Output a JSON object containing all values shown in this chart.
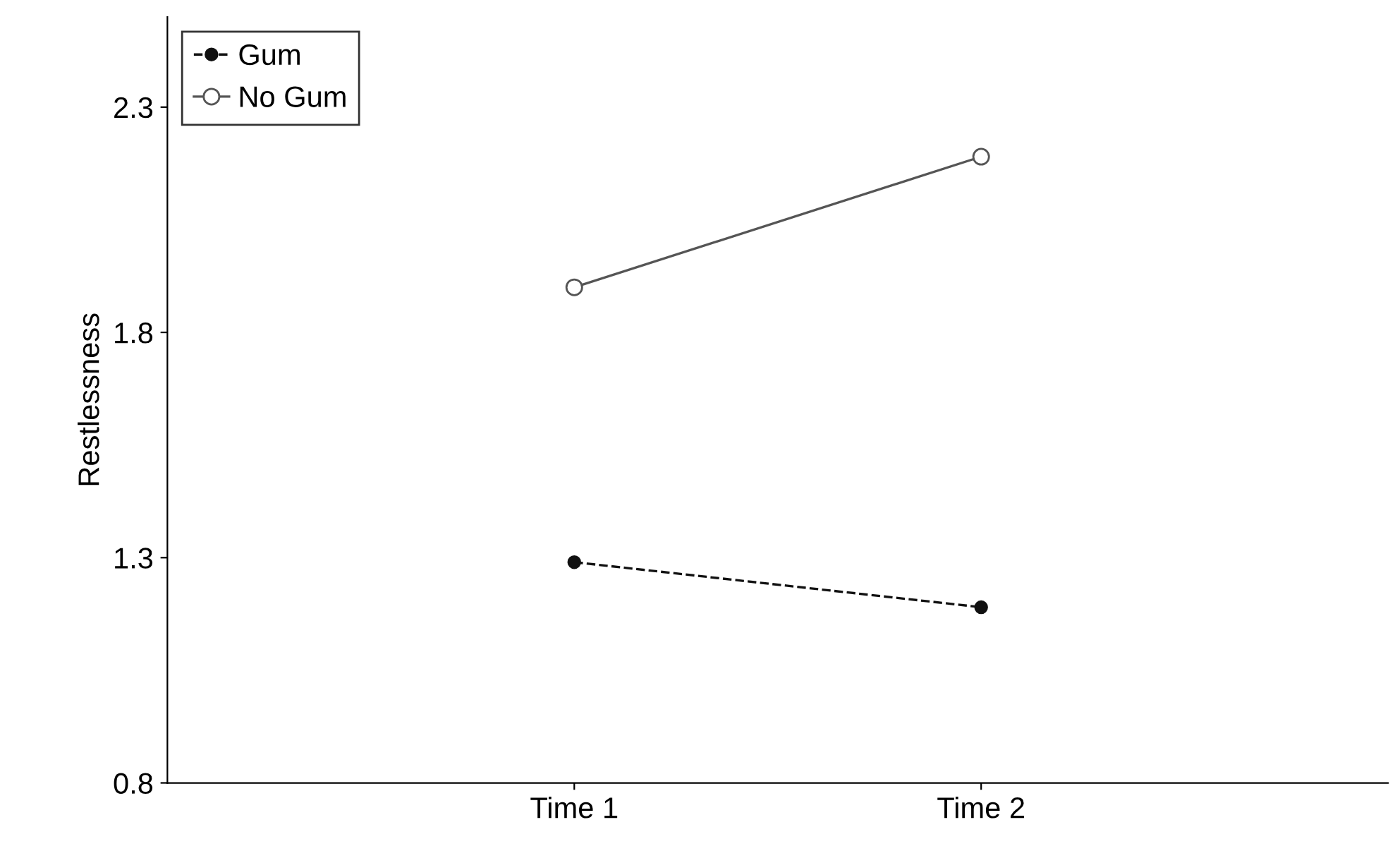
{
  "chart_data": {
    "type": "line",
    "ylabel": "Restlessness",
    "categories": [
      "Time 1",
      "Time 2"
    ],
    "series": [
      {
        "name": "Gum",
        "color": "#111111",
        "values": [
          1.29,
          1.19
        ],
        "line_style": "dashed",
        "marker": "circle"
      },
      {
        "name": "No Gum",
        "color": "#555555",
        "values": [
          1.9,
          2.19
        ],
        "line_style": "solid",
        "marker": "circle"
      }
    ],
    "ylim": [
      0.8,
      2.5
    ],
    "yticks": [
      0.8,
      1.3,
      1.8,
      2.3
    ],
    "grid": false,
    "legend": "top left"
  }
}
